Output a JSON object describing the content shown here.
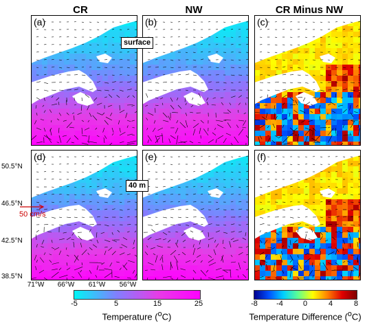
{
  "columns": [
    "CR",
    "NW",
    "CR Minus NW"
  ],
  "panels": [
    {
      "label": "(a)",
      "field": "temp",
      "depth": "surface"
    },
    {
      "label": "(b)",
      "field": "temp",
      "depth": "surface"
    },
    {
      "label": "(c)",
      "field": "diff",
      "depth": "surface"
    },
    {
      "label": "(d)",
      "field": "temp",
      "depth": "40 m"
    },
    {
      "label": "(e)",
      "field": "temp",
      "depth": "40 m"
    },
    {
      "label": "(f)",
      "field": "diff",
      "depth": "40 m"
    }
  ],
  "depth_tags": {
    "top": "surface",
    "bottom": "40 m"
  },
  "axes": {
    "lat_ticks": [
      "50.5°N",
      "46.5°N",
      "42.5°N",
      "38.5°N"
    ],
    "lon_ticks": [
      "71°W",
      "66°W",
      "61°W",
      "56°W"
    ]
  },
  "vector_scale": "50 cm/s",
  "colorbars": {
    "temperature": {
      "ticks": [
        "-5",
        "5",
        "15",
        "25"
      ],
      "title": "Temperature (°C)",
      "colors": [
        "#00f5f5",
        "#8080ff",
        "#e63ce6",
        "#ff00ff"
      ]
    },
    "difference": {
      "ticks": [
        "-8",
        "-4",
        "0",
        "4",
        "8"
      ],
      "title": "Temperature Difference (°C)",
      "colors": [
        "#00008f",
        "#0050ff",
        "#00d0ff",
        "#60ff90",
        "#ffff00",
        "#ff8000",
        "#e00000",
        "#7f0000"
      ]
    }
  }
}
